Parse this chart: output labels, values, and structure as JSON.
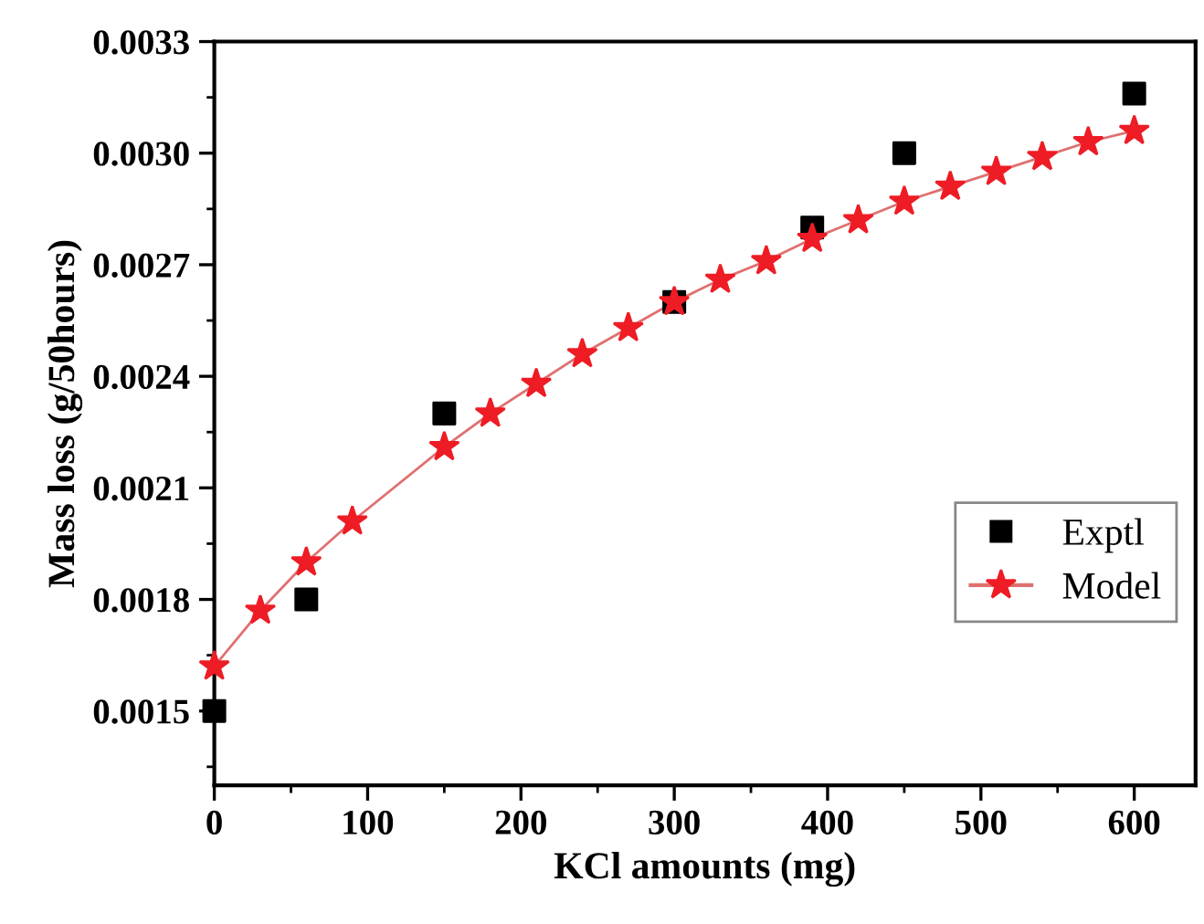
{
  "chart_data": {
    "type": "scatter",
    "xlabel": "KCl amounts (mg)",
    "ylabel": "Mass loss (g/50hours)",
    "xlim": [
      0,
      640
    ],
    "xticks": [
      0,
      100,
      200,
      300,
      400,
      500,
      600
    ],
    "ylim": [
      0.0013,
      0.0033
    ],
    "yticks": [
      0.0015,
      0.0018,
      0.0021,
      0.0024,
      0.0027,
      {
        "value": 0.003,
        "label": "0.0030"
      },
      0.0033
    ],
    "legend": "right",
    "grid": false,
    "series": [
      {
        "name": "Exptl",
        "marker": "square",
        "color": "#000000",
        "x": [
          0,
          60,
          150,
          300,
          390,
          450,
          600
        ],
        "values": [
          0.0015,
          0.0018,
          0.0023,
          0.0026,
          0.0028,
          0.003,
          0.00316
        ]
      },
      {
        "name": "Model",
        "type": "line",
        "marker": "star",
        "line_style": "solid",
        "color": "#ee1c25",
        "x": [
          0,
          30,
          60,
          90,
          150,
          180,
          210,
          240,
          270,
          300,
          330,
          360,
          390,
          420,
          450,
          480,
          510,
          540,
          570,
          600
        ],
        "values": [
          0.00162,
          0.00177,
          0.0019,
          0.00201,
          0.00221,
          0.0023,
          0.00238,
          0.00246,
          0.00253,
          0.0026,
          0.00266,
          0.00271,
          0.00277,
          0.00282,
          0.00287,
          0.00291,
          0.00295,
          0.00299,
          0.00303,
          0.00306
        ]
      }
    ]
  }
}
